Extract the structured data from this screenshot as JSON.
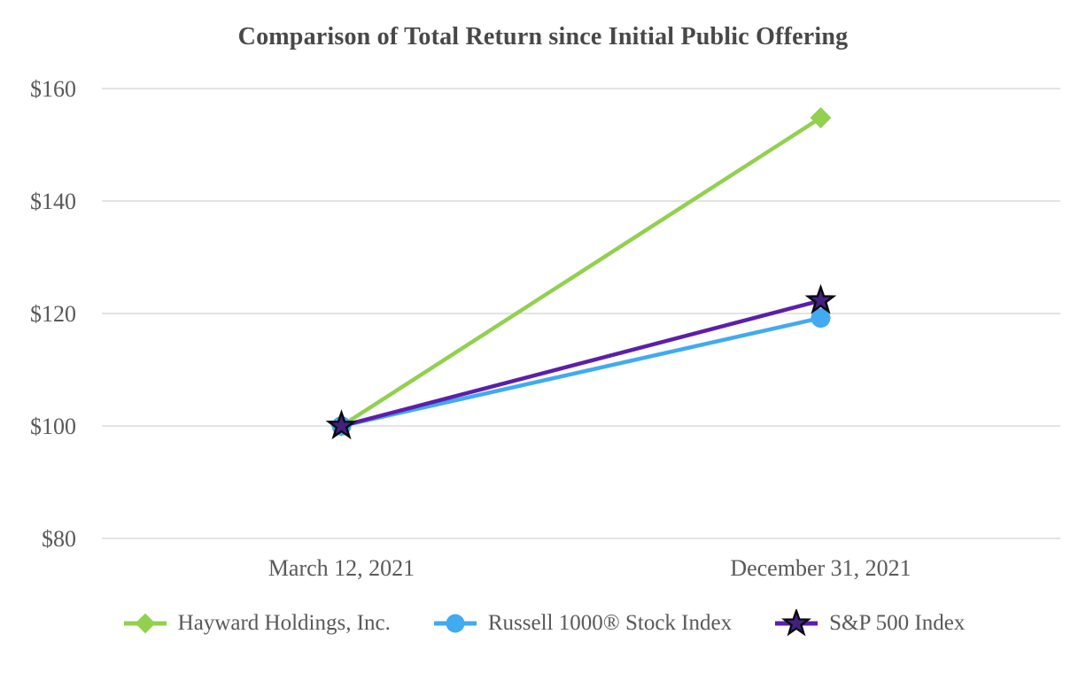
{
  "title": "Comparison of Total Return since Initial Public Offering",
  "chart_data": {
    "type": "line",
    "title": "Comparison of Total Return since Initial Public Offering",
    "x_categories": [
      "March 12, 2021",
      "December 31, 2021"
    ],
    "series": [
      {
        "name": "Hayward Holdings, Inc.",
        "marker": "diamond",
        "color": "#92D050",
        "values": [
          100,
          154.8
        ]
      },
      {
        "name": "Russell 1000® Stock Index",
        "marker": "circle",
        "color": "#41AAF0",
        "values": [
          100,
          119.2
        ]
      },
      {
        "name": "S&P 500 Index",
        "marker": "star",
        "color": "#5B1FA9",
        "marker_fill": "#44217E",
        "marker_stroke": "#0a0a14",
        "values": [
          100,
          122.3
        ]
      }
    ],
    "y_ticks": [
      "$160",
      "$140",
      "$120",
      "$100",
      "$80"
    ],
    "y_tick_values": [
      160,
      140,
      120,
      100,
      80
    ],
    "ylim": [
      80,
      160
    ],
    "xlabel": "",
    "ylabel": "",
    "grid": true,
    "gridline_color": "#e4e4e4",
    "text_color": "#595959",
    "legend_position": "bottom"
  }
}
